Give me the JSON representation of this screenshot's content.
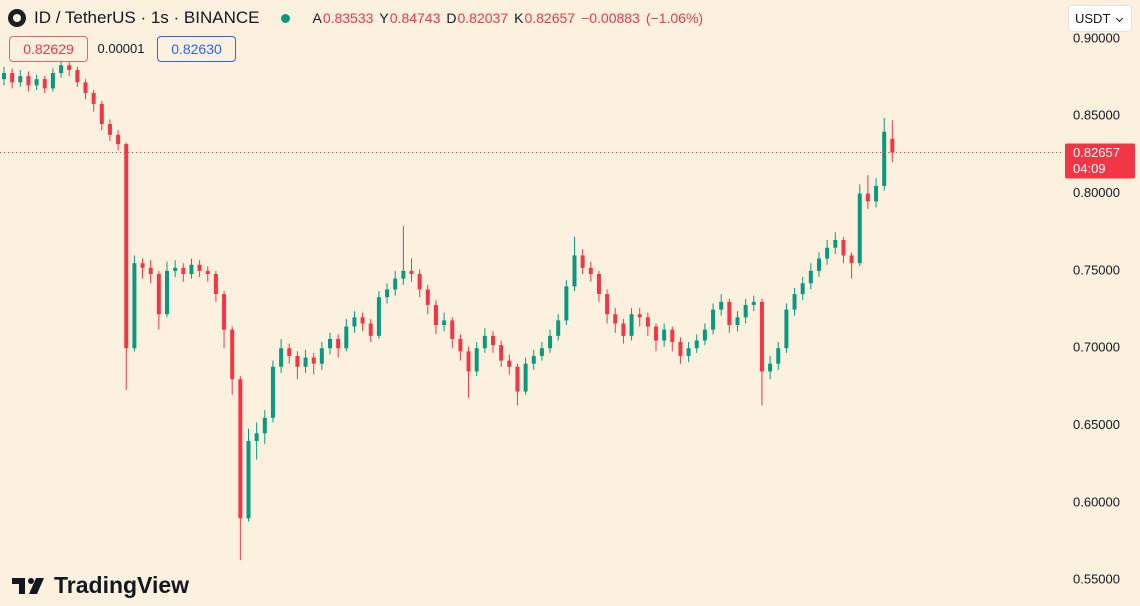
{
  "chart_data": {
    "type": "candlestick",
    "title": "ID / TetherUS · 1s · BINANCE",
    "legend": [
      {
        "label": "A",
        "value": 0.83533
      },
      {
        "label": "Y",
        "value": 0.84743
      },
      {
        "label": "D",
        "value": 0.82037
      },
      {
        "label": "K",
        "value": 0.82657
      }
    ],
    "change": {
      "value": -0.00883,
      "label": "−0.00883"
    },
    "change_pct": {
      "value": -1.06,
      "label": "(−1.06%)"
    },
    "bid": 0.82629,
    "spread": 1e-05,
    "ask": {
      "value": 0.8263,
      "label": "0.82630"
    },
    "currency": "USDT",
    "brand": "TradingView",
    "last_price": 0.82657,
    "countdown": "04:09",
    "up_color": "#089981",
    "down_color": "#f23645",
    "ylim": [
      0.5333,
      0.9252
    ],
    "yticks": [
      {
        "value": 0.55,
        "label": "0.55000"
      },
      {
        "value": 0.6,
        "label": "0.60000"
      },
      {
        "value": 0.65,
        "label": "0.65000"
      },
      {
        "value": 0.7,
        "label": "0.70000"
      },
      {
        "value": 0.75,
        "label": "0.75000"
      },
      {
        "value": 0.8,
        "label": "0.80000"
      },
      {
        "value": 0.85,
        "label": "0.85000"
      },
      {
        "value": 0.9,
        "label": "0.90000"
      }
    ],
    "open": [
      0.874,
      0.878,
      0.872,
      0.876,
      0.87,
      0.874,
      0.868,
      0.878,
      0.883,
      0.88,
      0.872,
      0.865,
      0.858,
      0.845,
      0.838,
      0.832,
      0.7,
      0.755,
      0.752,
      0.748,
      0.722,
      0.75,
      0.752,
      0.748,
      0.754,
      0.75,
      0.748,
      0.735,
      0.712,
      0.68,
      0.59,
      0.64,
      0.645,
      0.655,
      0.688,
      0.7,
      0.695,
      0.688,
      0.694,
      0.69,
      0.7,
      0.706,
      0.7,
      0.714,
      0.72,
      0.716,
      0.708,
      0.733,
      0.738,
      0.745,
      0.75,
      0.748,
      0.738,
      0.728,
      0.715,
      0.718,
      0.706,
      0.698,
      0.685,
      0.7,
      0.708,
      0.702,
      0.692,
      0.688,
      0.672,
      0.69,
      0.695,
      0.7,
      0.708,
      0.718,
      0.74,
      0.76,
      0.752,
      0.748,
      0.735,
      0.722,
      0.716,
      0.708,
      0.722,
      0.72,
      0.714,
      0.705,
      0.712,
      0.704,
      0.695,
      0.7,
      0.705,
      0.712,
      0.725,
      0.73,
      0.715,
      0.72,
      0.728,
      0.73,
      0.685,
      0.69,
      0.7,
      0.725,
      0.735,
      0.742,
      0.75,
      0.758,
      0.765,
      0.77,
      0.76,
      0.755,
      0.8,
      0.795,
      0.805,
      0.83533
    ],
    "high": [
      0.882,
      0.881,
      0.88,
      0.879,
      0.877,
      0.876,
      0.881,
      0.886,
      0.885,
      0.882,
      0.874,
      0.867,
      0.86,
      0.848,
      0.841,
      0.833,
      0.76,
      0.758,
      0.757,
      0.75,
      0.756,
      0.757,
      0.755,
      0.758,
      0.757,
      0.753,
      0.75,
      0.737,
      0.714,
      0.682,
      0.648,
      0.652,
      0.66,
      0.692,
      0.706,
      0.703,
      0.698,
      0.699,
      0.697,
      0.704,
      0.71,
      0.709,
      0.719,
      0.724,
      0.723,
      0.719,
      0.737,
      0.742,
      0.75,
      0.779,
      0.758,
      0.751,
      0.741,
      0.731,
      0.723,
      0.72,
      0.709,
      0.701,
      0.704,
      0.713,
      0.711,
      0.705,
      0.696,
      0.69,
      0.694,
      0.699,
      0.704,
      0.712,
      0.722,
      0.744,
      0.772,
      0.764,
      0.756,
      0.75,
      0.738,
      0.726,
      0.719,
      0.726,
      0.726,
      0.723,
      0.716,
      0.716,
      0.714,
      0.707,
      0.704,
      0.709,
      0.716,
      0.729,
      0.735,
      0.732,
      0.724,
      0.732,
      0.734,
      0.732,
      0.695,
      0.704,
      0.729,
      0.739,
      0.746,
      0.755,
      0.762,
      0.77,
      0.775,
      0.772,
      0.762,
      0.806,
      0.812,
      0.81,
      0.849,
      0.84743
    ],
    "low": [
      0.87,
      0.868,
      0.869,
      0.866,
      0.867,
      0.865,
      0.866,
      0.875,
      0.876,
      0.869,
      0.861,
      0.853,
      0.841,
      0.834,
      0.828,
      0.673,
      0.698,
      0.745,
      0.742,
      0.712,
      0.72,
      0.746,
      0.743,
      0.745,
      0.746,
      0.743,
      0.73,
      0.7,
      0.67,
      0.563,
      0.588,
      0.628,
      0.638,
      0.652,
      0.684,
      0.69,
      0.68,
      0.684,
      0.683,
      0.686,
      0.696,
      0.694,
      0.698,
      0.71,
      0.711,
      0.704,
      0.706,
      0.729,
      0.734,
      0.741,
      0.743,
      0.733,
      0.722,
      0.709,
      0.711,
      0.7,
      0.692,
      0.668,
      0.682,
      0.697,
      0.697,
      0.688,
      0.683,
      0.663,
      0.67,
      0.686,
      0.692,
      0.697,
      0.705,
      0.715,
      0.737,
      0.748,
      0.743,
      0.73,
      0.716,
      0.71,
      0.703,
      0.705,
      0.714,
      0.708,
      0.698,
      0.701,
      0.698,
      0.69,
      0.691,
      0.697,
      0.702,
      0.709,
      0.721,
      0.71,
      0.711,
      0.716,
      0.724,
      0.663,
      0.68,
      0.686,
      0.697,
      0.721,
      0.731,
      0.738,
      0.746,
      0.754,
      0.761,
      0.755,
      0.745,
      0.753,
      0.79,
      0.791,
      0.802,
      0.82037
    ],
    "close": [
      0.878,
      0.872,
      0.876,
      0.87,
      0.874,
      0.868,
      0.878,
      0.883,
      0.88,
      0.872,
      0.865,
      0.858,
      0.845,
      0.838,
      0.832,
      0.7,
      0.755,
      0.752,
      0.748,
      0.722,
      0.75,
      0.752,
      0.748,
      0.754,
      0.75,
      0.748,
      0.735,
      0.712,
      0.68,
      0.59,
      0.64,
      0.645,
      0.655,
      0.688,
      0.7,
      0.695,
      0.688,
      0.694,
      0.69,
      0.7,
      0.706,
      0.7,
      0.714,
      0.72,
      0.716,
      0.708,
      0.733,
      0.738,
      0.745,
      0.75,
      0.748,
      0.738,
      0.728,
      0.715,
      0.718,
      0.706,
      0.698,
      0.685,
      0.7,
      0.708,
      0.702,
      0.692,
      0.688,
      0.672,
      0.69,
      0.695,
      0.7,
      0.708,
      0.718,
      0.74,
      0.76,
      0.752,
      0.748,
      0.735,
      0.722,
      0.716,
      0.708,
      0.722,
      0.72,
      0.714,
      0.705,
      0.712,
      0.704,
      0.695,
      0.7,
      0.705,
      0.712,
      0.725,
      0.73,
      0.715,
      0.72,
      0.728,
      0.73,
      0.685,
      0.69,
      0.7,
      0.725,
      0.735,
      0.742,
      0.75,
      0.758,
      0.765,
      0.77,
      0.76,
      0.755,
      0.8,
      0.795,
      0.805,
      0.84,
      0.82657
    ]
  }
}
